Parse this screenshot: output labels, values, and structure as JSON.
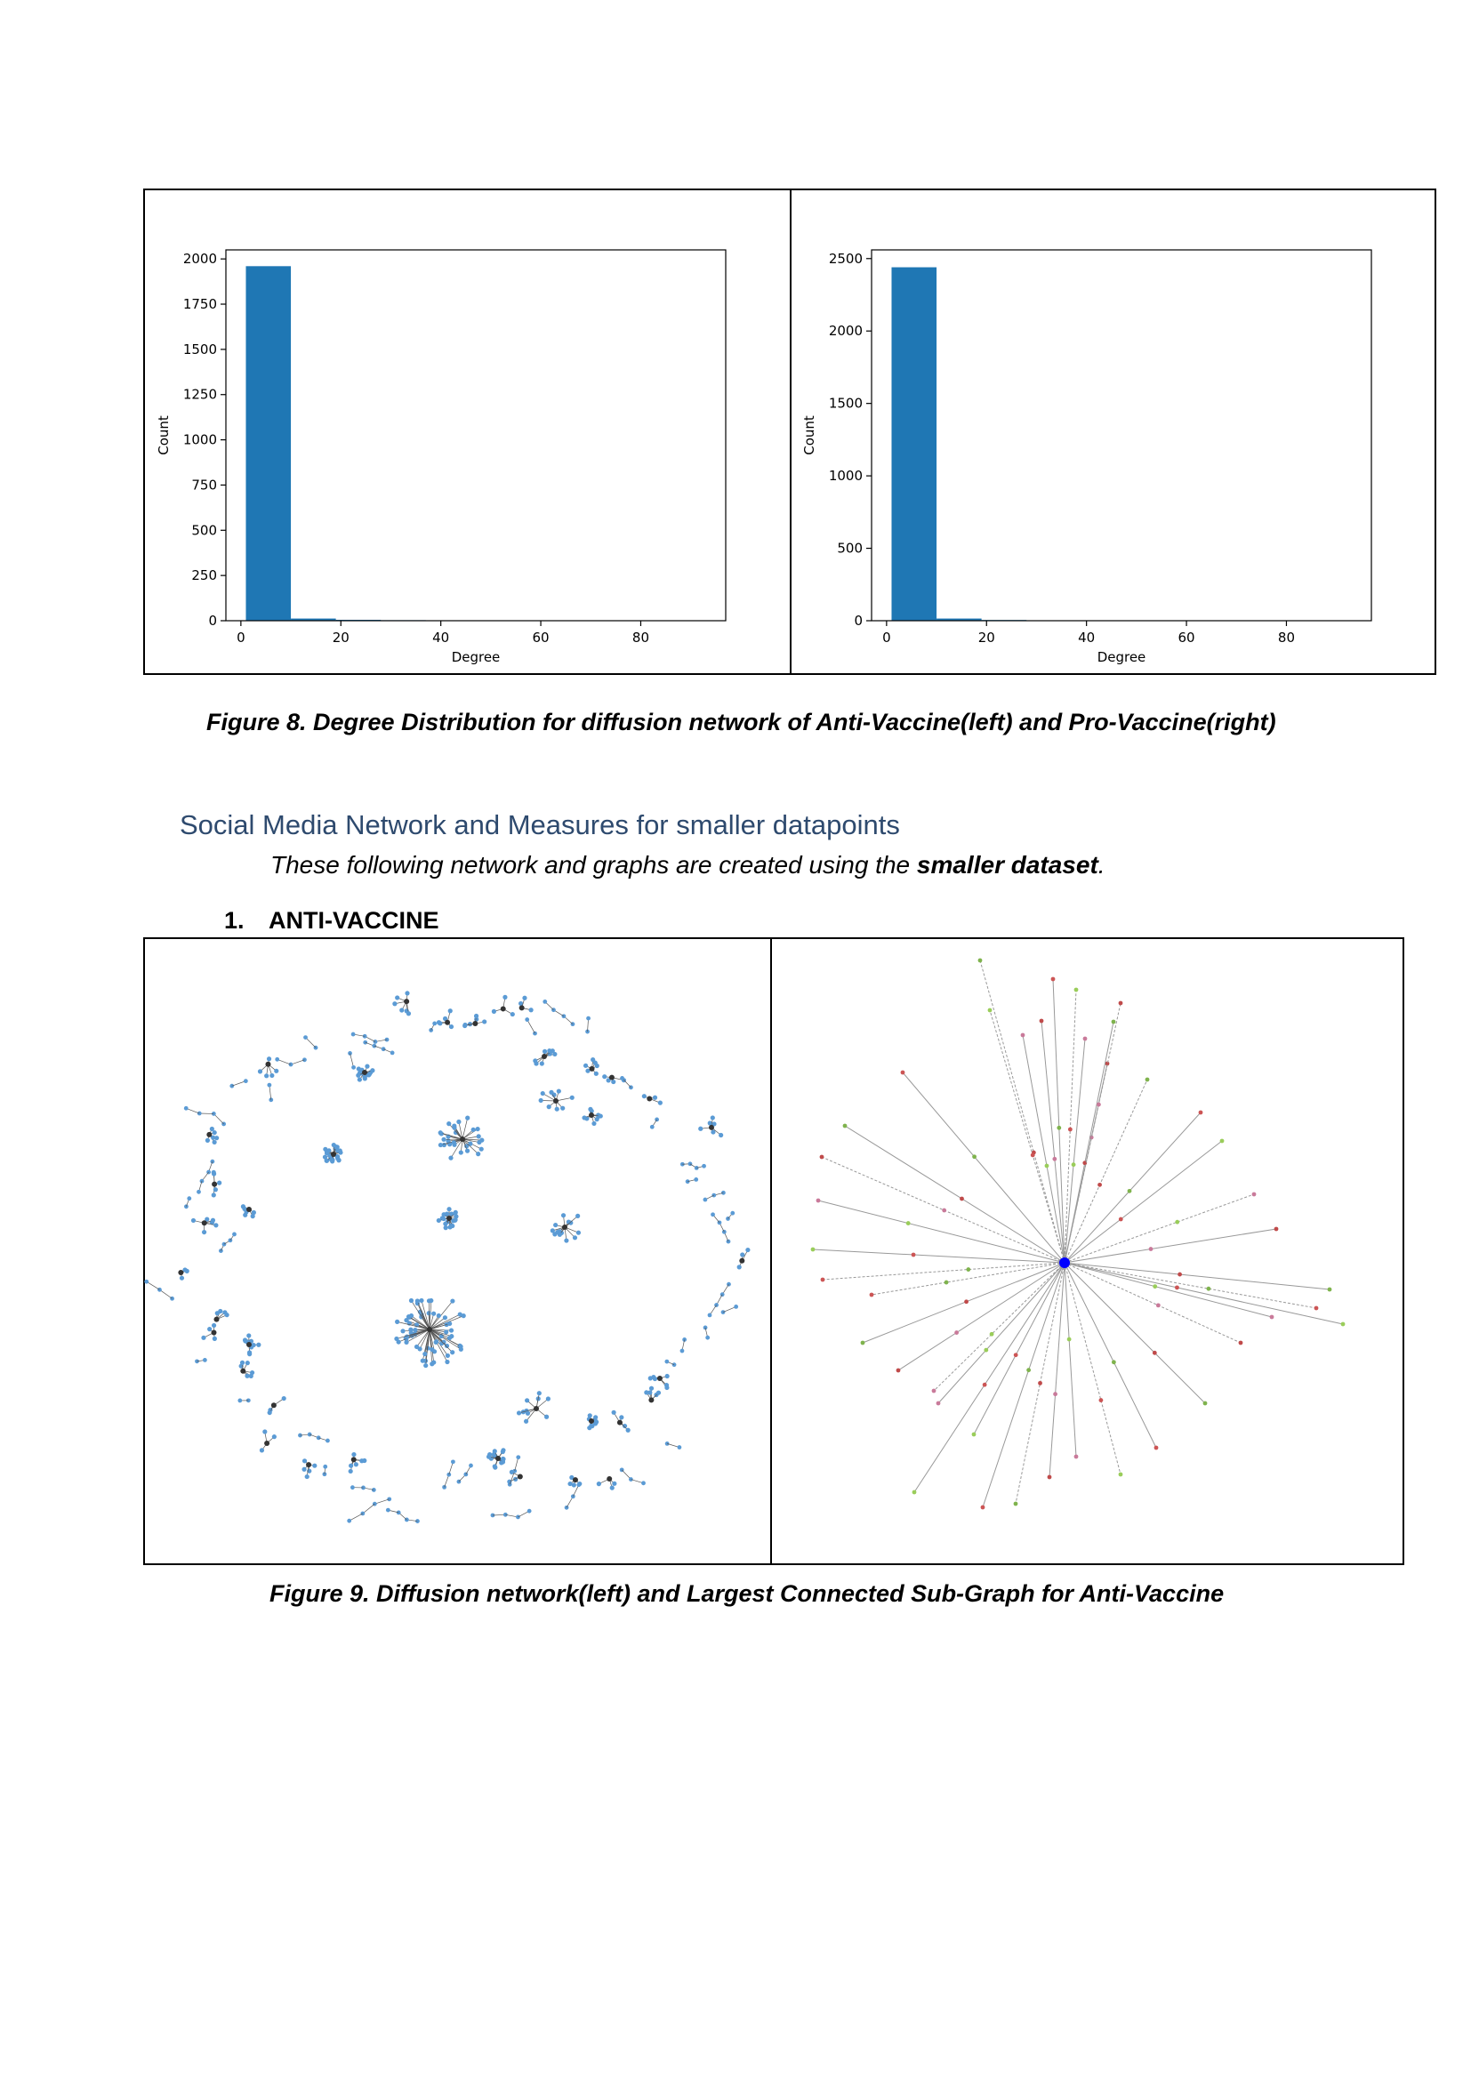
{
  "figure8": {
    "caption": "Figure 8. Degree Distribution for diffusion network of Anti-Vaccine(left) and Pro-Vaccine(right)"
  },
  "section": {
    "heading": "Social Media Network and Measures for smaller datapoints",
    "intro_prefix": "These following network and graphs are created using the ",
    "intro_bold": "smaller dataset",
    "intro_suffix": ".",
    "list_number": "1.",
    "list_label": "ANTI-VACCINE"
  },
  "figure9": {
    "caption": "Figure 9. Diffusion network(left) and Largest Connected Sub-Graph for Anti-Vaccine"
  },
  "colors": {
    "bar": "#1f77b4",
    "node": "#5b9bd5",
    "hub_node": "#0000ff",
    "heading": "#2e4a6e"
  },
  "chart_data": [
    {
      "type": "bar",
      "xlabel": "Degree",
      "ylabel": "Count",
      "xlim": [
        -3,
        97
      ],
      "ylim": [
        0,
        2050
      ],
      "xticks": [
        "0",
        "20",
        "40",
        "60",
        "80"
      ],
      "yticks": [
        "0",
        "250",
        "500",
        "750",
        "1000",
        "1250",
        "1500",
        "1750",
        "2000"
      ],
      "bins": [
        {
          "x0": 1,
          "x1": 10,
          "count": 1960
        },
        {
          "x0": 10,
          "x1": 19,
          "count": 12
        },
        {
          "x0": 19,
          "x1": 28,
          "count": 5
        },
        {
          "x0": 28,
          "x1": 37,
          "count": 3
        },
        {
          "x0": 37,
          "x1": 46,
          "count": 1
        },
        {
          "x0": 46,
          "x1": 55,
          "count": 2
        },
        {
          "x0": 55,
          "x1": 64,
          "count": 1
        },
        {
          "x0": 64,
          "x1": 73,
          "count": 0
        },
        {
          "x0": 73,
          "x1": 82,
          "count": 0
        },
        {
          "x0": 82,
          "x1": 91,
          "count": 0
        }
      ]
    },
    {
      "type": "bar",
      "xlabel": "Degree",
      "ylabel": "Count",
      "xlim": [
        -3,
        97
      ],
      "ylim": [
        0,
        2560
      ],
      "xticks": [
        "0",
        "20",
        "40",
        "60",
        "80"
      ],
      "yticks": [
        "0",
        "500",
        "1000",
        "1500",
        "2000",
        "2500"
      ],
      "bins": [
        {
          "x0": 1,
          "x1": 10,
          "count": 2440
        },
        {
          "x0": 10,
          "x1": 19,
          "count": 15
        },
        {
          "x0": 19,
          "x1": 28,
          "count": 5
        },
        {
          "x0": 28,
          "x1": 37,
          "count": 1
        },
        {
          "x0": 37,
          "x1": 46,
          "count": 1
        },
        {
          "x0": 46,
          "x1": 55,
          "count": 0
        },
        {
          "x0": 55,
          "x1": 64,
          "count": 0
        },
        {
          "x0": 64,
          "x1": 73,
          "count": 0
        },
        {
          "x0": 73,
          "x1": 82,
          "count": 0
        },
        {
          "x0": 82,
          "x1": 91,
          "count": 1
        }
      ]
    }
  ]
}
